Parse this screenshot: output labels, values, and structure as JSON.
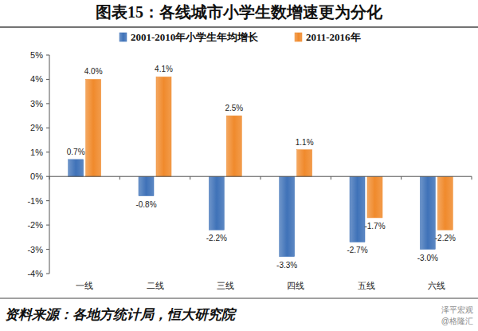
{
  "chart_data": {
    "type": "bar",
    "title": "图表15：各线城市小学生数增速更为分化",
    "categories": [
      "一线",
      "二线",
      "三线",
      "四线",
      "五线",
      "六线"
    ],
    "series": [
      {
        "name": "2001-2010年小学生年均增长",
        "color": "#3f72b8",
        "values": [
          0.7,
          -0.8,
          -2.2,
          -3.3,
          -2.7,
          -3.0
        ],
        "value_labels": [
          "0.7%",
          "-0.8%",
          "-2.2%",
          "-3.3%",
          "-2.7%",
          "-3.0%"
        ]
      },
      {
        "name": "2011-2016年",
        "color": "#f08a2c",
        "values": [
          4.0,
          4.1,
          2.5,
          1.1,
          -1.7,
          -2.2
        ],
        "value_labels": [
          "4.0%",
          "4.1%",
          "2.5%",
          "1.1%",
          "-1.7%",
          "-2.2%"
        ]
      }
    ],
    "ylim": [
      -4,
      5
    ],
    "yticks": [
      {
        "value": -4,
        "label": "-4%"
      },
      {
        "value": -3,
        "label": "-3%"
      },
      {
        "value": -2,
        "label": "-2%"
      },
      {
        "value": -1,
        "label": "-1%"
      },
      {
        "value": 0,
        "label": "0%"
      },
      {
        "value": 1,
        "label": "1%"
      },
      {
        "value": 2,
        "label": "2%"
      },
      {
        "value": 3,
        "label": "3%"
      },
      {
        "value": 4,
        "label": "4%"
      },
      {
        "value": 5,
        "label": "5%"
      }
    ],
    "grid": false,
    "legend": "top",
    "data_labels": true,
    "source": "资料来源：各地方统计局，恒大研究院",
    "watermark": [
      "泽平宏观",
      "@格隆汇"
    ]
  }
}
